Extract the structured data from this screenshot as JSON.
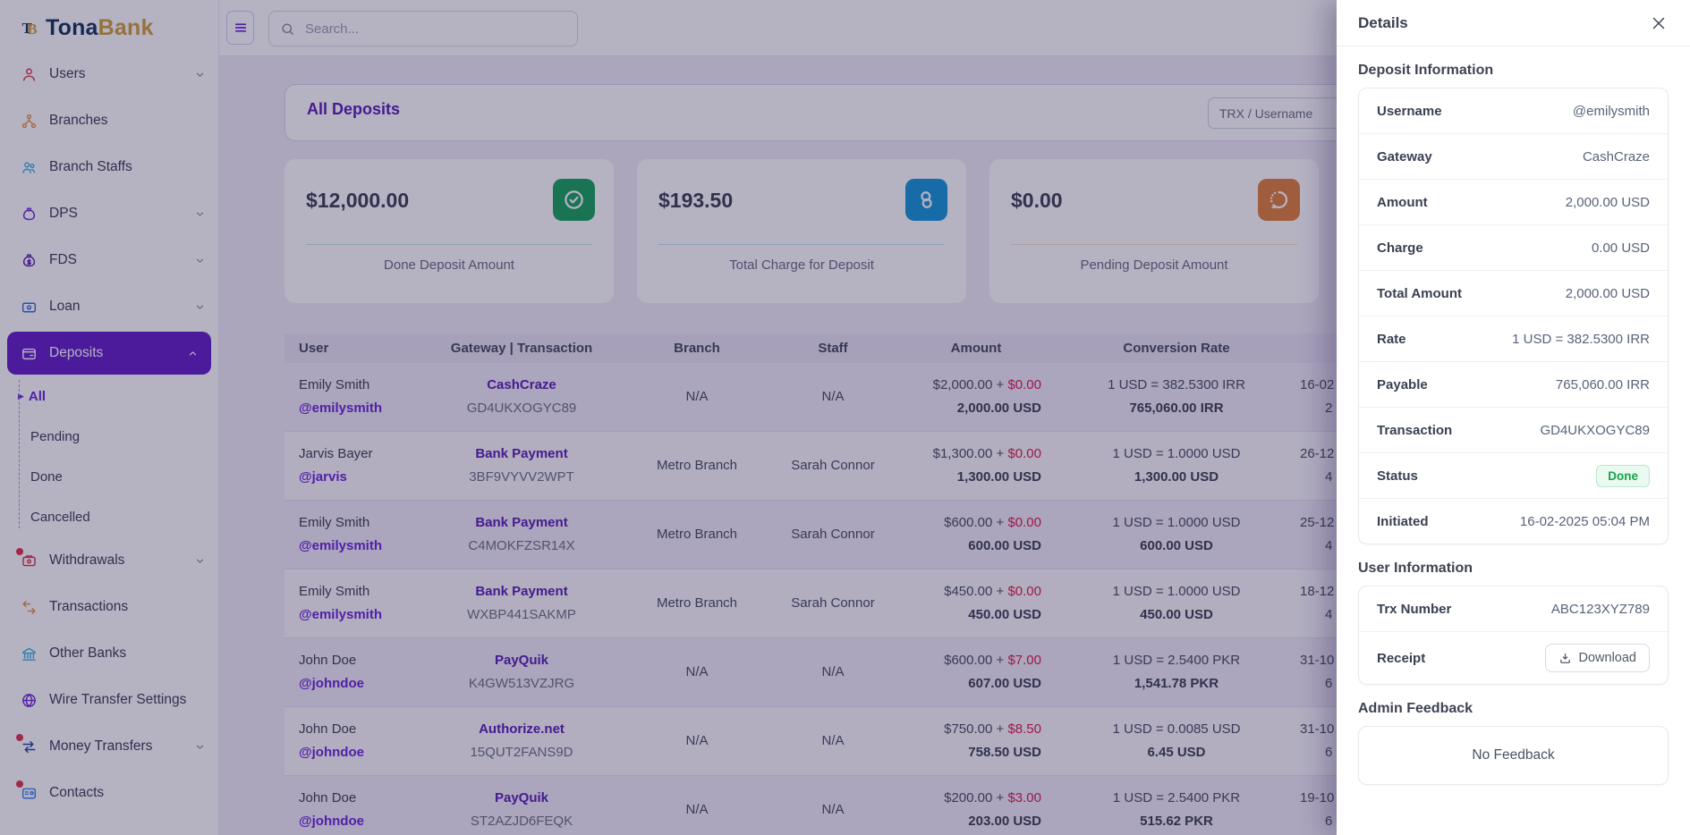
{
  "brand": {
    "name_primary": "Tona",
    "name_secondary": "Bank"
  },
  "topbar": {
    "search_placeholder": "Search..."
  },
  "sidebar": {
    "items": [
      {
        "label": "Users",
        "icon": "user",
        "color": "#e23744",
        "chevron": true
      },
      {
        "label": "Branches",
        "icon": "org",
        "color": "#e8923d"
      },
      {
        "label": "Branch Staffs",
        "icon": "people",
        "color": "#38b6e3"
      },
      {
        "label": "DPS",
        "icon": "bag",
        "color": "#6d28d9",
        "chevron": true
      },
      {
        "label": "FDS",
        "icon": "bag-dollar",
        "color": "#5b21b6",
        "chevron": true
      },
      {
        "label": "Loan",
        "icon": "wallet",
        "color": "#2f6fe4",
        "chevron": true
      },
      {
        "label": "Deposits",
        "icon": "wallet-card",
        "color": "#ffffff",
        "chevron": true,
        "active": true,
        "expanded": true
      },
      {
        "label": "Withdrawals",
        "icon": "wallet-out",
        "color": "#e0354d",
        "chevron": true,
        "dot": true
      },
      {
        "label": "Transactions",
        "icon": "swap",
        "color": "#e8923d"
      },
      {
        "label": "Other Banks",
        "icon": "bank",
        "color": "#38b6e3"
      },
      {
        "label": "Wire Transfer Settings",
        "icon": "globe",
        "color": "#6d28d9"
      },
      {
        "label": "Money Transfers",
        "icon": "transfer",
        "color": "#2446a8",
        "chevron": true,
        "dot": true
      },
      {
        "label": "Contacts",
        "icon": "card",
        "color": "#3b82f6",
        "dot": true
      }
    ],
    "deposits_submenu": [
      {
        "label": "All",
        "active": true
      },
      {
        "label": "Pending"
      },
      {
        "label": "Done"
      },
      {
        "label": "Cancelled"
      }
    ]
  },
  "page": {
    "title": "All Deposits",
    "filter_placeholder": "TRX / Username"
  },
  "stats": [
    {
      "amount": "$12,000.00",
      "label": "Done Deposit Amount",
      "icon": "check-circle",
      "color": "#18a45c"
    },
    {
      "amount": "$193.50",
      "label": "Total Charge for Deposit",
      "icon": "coins",
      "color": "#1798d8"
    },
    {
      "amount": "$0.00",
      "label": "Pending Deposit Amount",
      "icon": "rotate",
      "color": "#e0823c"
    }
  ],
  "table": {
    "headers": [
      "User",
      "Gateway | Transaction",
      "Branch",
      "Staff",
      "Amount",
      "Conversion Rate"
    ],
    "rows": [
      {
        "name": "Emily Smith",
        "username": "@emilysmith",
        "gateway": "CashCraze",
        "trx": "GD4UKXOGYC89",
        "branch": "N/A",
        "staff": "N/A",
        "amount_base": "$2,000.00",
        "amount_fee": "$0.00",
        "amount_total": "2,000.00 USD",
        "rate": "1 USD = 382.5300 IRR",
        "converted": "765,060.00 IRR",
        "date_line1": "16-02",
        "date_line2": "2"
      },
      {
        "name": "Jarvis Bayer",
        "username": "@jarvis",
        "gateway": "Bank Payment",
        "trx": "3BF9VYVV2WPT",
        "branch": "Metro Branch",
        "staff": "Sarah Connor",
        "amount_base": "$1,300.00",
        "amount_fee": "$0.00",
        "amount_total": "1,300.00 USD",
        "rate": "1 USD = 1.0000 USD",
        "converted": "1,300.00 USD",
        "date_line1": "26-12",
        "date_line2": "4"
      },
      {
        "name": "Emily Smith",
        "username": "@emilysmith",
        "gateway": "Bank Payment",
        "trx": "C4MOKFZSR14X",
        "branch": "Metro Branch",
        "staff": "Sarah Connor",
        "amount_base": "$600.00",
        "amount_fee": "$0.00",
        "amount_total": "600.00 USD",
        "rate": "1 USD = 1.0000 USD",
        "converted": "600.00 USD",
        "date_line1": "25-12",
        "date_line2": "4"
      },
      {
        "name": "Emily Smith",
        "username": "@emilysmith",
        "gateway": "Bank Payment",
        "trx": "WXBP441SAKMP",
        "branch": "Metro Branch",
        "staff": "Sarah Connor",
        "amount_base": "$450.00",
        "amount_fee": "$0.00",
        "amount_total": "450.00 USD",
        "rate": "1 USD = 1.0000 USD",
        "converted": "450.00 USD",
        "date_line1": "18-12",
        "date_line2": "4"
      },
      {
        "name": "John Doe",
        "username": "@johndoe",
        "gateway": "PayQuik",
        "trx": "K4GW513VZJRG",
        "branch": "N/A",
        "staff": "N/A",
        "amount_base": "$600.00",
        "amount_fee": "$7.00",
        "amount_total": "607.00 USD",
        "rate": "1 USD = 2.5400 PKR",
        "converted": "1,541.78 PKR",
        "date_line1": "31-10",
        "date_line2": "6"
      },
      {
        "name": "John Doe",
        "username": "@johndoe",
        "gateway": "Authorize.net",
        "trx": "15QUT2FANS9D",
        "branch": "N/A",
        "staff": "N/A",
        "amount_base": "$750.00",
        "amount_fee": "$8.50",
        "amount_total": "758.50 USD",
        "rate": "1 USD = 0.0085 USD",
        "converted": "6.45 USD",
        "date_line1": "31-10",
        "date_line2": "6"
      },
      {
        "name": "John Doe",
        "username": "@johndoe",
        "gateway": "PayQuik",
        "trx": "ST2AZJD6FEQK",
        "branch": "N/A",
        "staff": "N/A",
        "amount_base": "$200.00",
        "amount_fee": "$3.00",
        "amount_total": "203.00 USD",
        "rate": "1 USD = 2.5400 PKR",
        "converted": "515.62 PKR",
        "date_line1": "19-10",
        "date_line2": "6"
      }
    ]
  },
  "details": {
    "title": "Details",
    "deposit_information": {
      "heading": "Deposit Information",
      "rows": [
        {
          "label": "Username",
          "value": "@emilysmith"
        },
        {
          "label": "Gateway",
          "value": "CashCraze"
        },
        {
          "label": "Amount",
          "value": "2,000.00 USD"
        },
        {
          "label": "Charge",
          "value": "0.00 USD"
        },
        {
          "label": "Total Amount",
          "value": "2,000.00 USD"
        },
        {
          "label": "Rate",
          "value": "1 USD = 382.5300 IRR"
        },
        {
          "label": "Payable",
          "value": "765,060.00 IRR"
        },
        {
          "label": "Transaction",
          "value": "GD4UKXOGYC89"
        },
        {
          "label": "Status",
          "value": "Done",
          "type": "badge"
        },
        {
          "label": "Initiated",
          "value": "16-02-2025 05:04 PM"
        }
      ]
    },
    "user_information": {
      "heading": "User Information",
      "rows": [
        {
          "label": "Trx Number",
          "value": "ABC123XYZ789"
        },
        {
          "label": "Receipt",
          "value": "Download",
          "type": "button"
        }
      ]
    },
    "admin_feedback": {
      "heading": "Admin Feedback",
      "empty_text": "No Feedback"
    }
  },
  "colors": {
    "accent_purple": "#6d28d9",
    "active_nav_bg": "#6421c8",
    "status_done_text": "#16a34a",
    "status_done_bg": "#eafaf0",
    "fee_red": "#e11d48",
    "backdrop": "rgba(26,16,64,0.32)"
  }
}
